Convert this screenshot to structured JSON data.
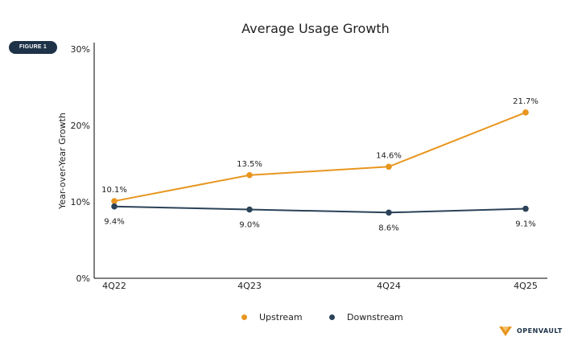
{
  "figure_label": "FIGURE 1",
  "brand": "OPENVAULT",
  "colors": {
    "upstream": "#e8961f",
    "downstream": "#2b4258",
    "badge": "#1e3348"
  },
  "chart_data": {
    "type": "line",
    "title": "Average Usage Growth",
    "xlabel": "",
    "ylabel": "Year-over-Year Growth",
    "categories": [
      "4Q22",
      "4Q23",
      "4Q24",
      "4Q25"
    ],
    "y_ticks": [
      "0%",
      "10%",
      "20%",
      "30%"
    ],
    "ylim": [
      0,
      30
    ],
    "grid": false,
    "legend_position": "bottom-center",
    "series": [
      {
        "name": "Upstream",
        "values": [
          10.1,
          13.5,
          14.6,
          21.7
        ],
        "labels": [
          "10.1%",
          "13.5%",
          "14.6%",
          "21.7%"
        ]
      },
      {
        "name": "Downstream",
        "values": [
          9.4,
          9.0,
          8.6,
          9.1
        ],
        "labels": [
          "9.4%",
          "9.0%",
          "8.6%",
          "9.1%"
        ]
      }
    ]
  }
}
